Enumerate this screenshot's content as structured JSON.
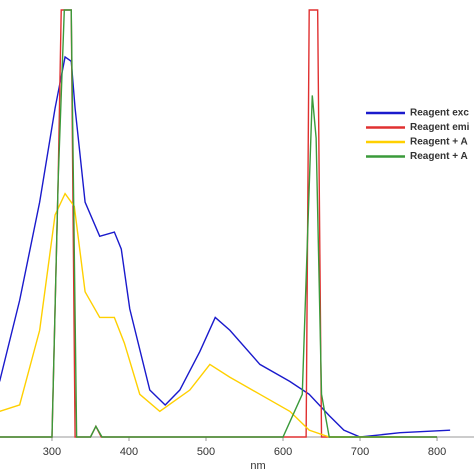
{
  "chart_data": {
    "type": "line",
    "xlabel": "nm",
    "xlim": [
      232.5,
      848
    ],
    "xticks": [
      300,
      400,
      500,
      600,
      700,
      800
    ],
    "ylim": [
      0,
      100
    ],
    "series": [
      {
        "name": "Reagent exc",
        "color": "#1a1acc",
        "x": [
          232,
          258,
          284,
          304,
          317,
          325,
          330,
          343,
          362,
          381,
          390,
          401,
          427,
          447,
          466,
          492,
          512,
          531,
          570,
          609,
          634,
          660,
          679,
          700,
          752,
          817
        ],
        "values": [
          13,
          32,
          55,
          77,
          89,
          88,
          77,
          55,
          47,
          48,
          44,
          30,
          11,
          7.5,
          11,
          20,
          28,
          25,
          17,
          13,
          10,
          5,
          1.6,
          0,
          1,
          1.6
        ]
      },
      {
        "name": "Reagent emi",
        "color": "#e03030",
        "x": [
          232,
          300,
          308,
          312,
          325,
          330,
          350,
          357,
          364,
          630,
          634,
          645,
          650,
          800
        ],
        "values": [
          0,
          0,
          60,
          100,
          100,
          0,
          0,
          2.5,
          0,
          0,
          100,
          100,
          0,
          0
        ]
      },
      {
        "name": "Reagent + A",
        "color": "#ffd000",
        "x": [
          232,
          258,
          284,
          304,
          317,
          329,
          343,
          362,
          381,
          394,
          414,
          440,
          479,
          505,
          531,
          570,
          609,
          634,
          660,
          752
        ],
        "values": [
          6,
          7.5,
          25,
          52,
          57,
          54,
          34,
          28,
          28,
          22,
          10,
          6,
          11,
          17,
          14,
          10,
          6,
          1.6,
          0,
          0
        ]
      },
      {
        "name": "Reagent + A",
        "color": "#3a9a3a",
        "x": [
          232,
          300,
          308,
          316,
          325,
          332,
          350,
          357,
          365,
          600,
          625,
          638,
          643,
          650,
          660,
          800
        ],
        "values": [
          0,
          0,
          60,
          100,
          100,
          0,
          0,
          2.5,
          0,
          0,
          10,
          80,
          70,
          10,
          0,
          0
        ]
      }
    ]
  }
}
